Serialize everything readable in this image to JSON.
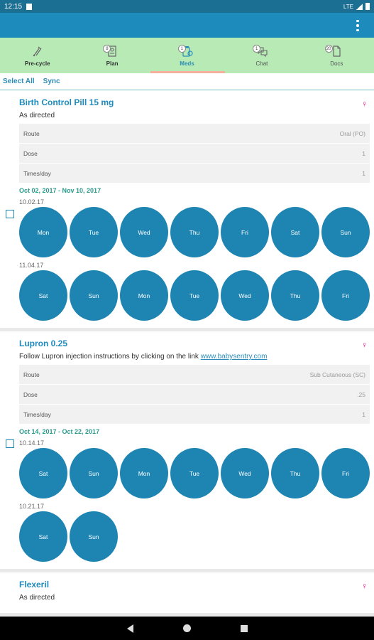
{
  "status": {
    "time": "12:15",
    "network": "LTE"
  },
  "tabs": [
    {
      "label": "Pre-cycle",
      "badge": "",
      "active": false,
      "icon": "syringe-icon"
    },
    {
      "label": "Plan",
      "badge": "8",
      "active": false,
      "icon": "plan-icon"
    },
    {
      "label": "Meds",
      "badge": "1",
      "active": true,
      "icon": "meds-icon"
    },
    {
      "label": "Chat",
      "badge": "1",
      "active": false,
      "icon": "chat-icon"
    },
    {
      "label": "Docs",
      "badge": "20",
      "active": false,
      "icon": "docs-icon"
    }
  ],
  "select": {
    "select_all": "Select All",
    "sync": "Sync"
  },
  "meds": [
    {
      "title": "Birth Control Pill 15 mg",
      "subtitle": "As directed",
      "rows": [
        {
          "label": "Route",
          "value": "Oral (PO)"
        },
        {
          "label": "Dose",
          "value": "1"
        },
        {
          "label": "Times/day",
          "value": "1"
        }
      ],
      "date_range": "Oct 02, 2017 - Nov 10, 2017",
      "weeks": [
        {
          "date": "10.02.17",
          "days": [
            "Mon",
            "Tue",
            "Wed",
            "Thu",
            "Fri",
            "Sat",
            "Sun"
          ]
        },
        {
          "date": "11.04.17",
          "days": [
            "Sat",
            "Sun",
            "Mon",
            "Tue",
            "Wed",
            "Thu",
            "Fri"
          ]
        }
      ]
    },
    {
      "title": "Lupron 0.25",
      "subtitle": "Follow Lupron injection instructions by clicking on the link ",
      "link": "www.babysentry.com",
      "rows": [
        {
          "label": "Route",
          "value": "Sub Cutaneous (SC)"
        },
        {
          "label": "Dose",
          "value": ".25"
        },
        {
          "label": "Times/day",
          "value": "1"
        }
      ],
      "date_range": "Oct 14, 2017 - Oct 22, 2017",
      "weeks": [
        {
          "date": "10.14.17",
          "days": [
            "Sat",
            "Sun",
            "Mon",
            "Tue",
            "Wed",
            "Thu",
            "Fri"
          ]
        },
        {
          "date": "10.21.17",
          "days": [
            "Sat",
            "Sun"
          ]
        }
      ]
    },
    {
      "title": "Flexeril",
      "subtitle": "As directed",
      "rows": [],
      "date_range": "",
      "weeks": []
    }
  ],
  "colors": {
    "primary": "#1e8bbd",
    "tabs_bg": "#b7eab5",
    "female_icon": "#d81b84",
    "date_range": "#2a9a8c"
  }
}
